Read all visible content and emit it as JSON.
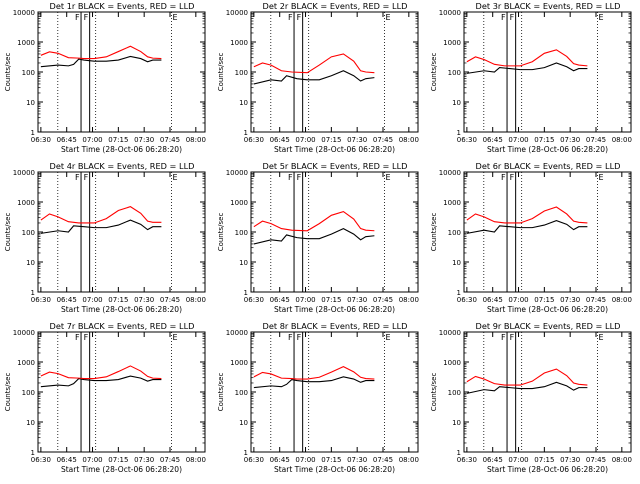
{
  "chart_data": [
    {
      "type": "line",
      "title": "Det 1r BLACK = Events, RED = LLD",
      "xlabel": "Start Time (28-Oct-06 06:28:20)",
      "ylabel": "Counts/sec",
      "xticks": [
        "06:30",
        "06:45",
        "07:00",
        "07:15",
        "07:30",
        "07:45",
        "08:00"
      ],
      "yticks": [
        "1",
        "10",
        "100",
        "1000",
        "10000"
      ],
      "markers": [
        "F",
        "F",
        "E"
      ],
      "scale": "log",
      "series": [
        {
          "name": "BLACK",
          "color": "#000000",
          "x": [
            0,
            10,
            16,
            19,
            22,
            25,
            31,
            38,
            45,
            52,
            58,
            62,
            65,
            70
          ],
          "y": [
            150,
            170,
            160,
            180,
            270,
            250,
            230,
            230,
            250,
            330,
            280,
            220,
            250,
            250
          ]
        },
        {
          "name": "RED",
          "color": "#ff0000",
          "x": [
            0,
            5,
            10,
            16,
            22,
            25,
            31,
            38,
            45,
            52,
            58,
            62,
            65,
            70
          ],
          "y": [
            360,
            470,
            420,
            300,
            290,
            280,
            280,
            320,
            480,
            720,
            480,
            320,
            290,
            280
          ]
        }
      ]
    },
    {
      "type": "line",
      "title": "Det 2r BLACK = Events, RED = LLD",
      "xlabel": "Start Time (28-Oct-06 06:28:20)",
      "ylabel": "Counts/sec",
      "xticks": [
        "06:30",
        "06:45",
        "07:00",
        "07:15",
        "07:30",
        "07:45",
        "08:00"
      ],
      "yticks": [
        "1",
        "10",
        "100",
        "1000",
        "10000"
      ],
      "markers": [
        "F",
        "F",
        "E"
      ],
      "scale": "log",
      "series": [
        {
          "name": "BLACK",
          "color": "#000000",
          "x": [
            0,
            10,
            16,
            19,
            25,
            31,
            38,
            45,
            52,
            58,
            62,
            65,
            70
          ],
          "y": [
            40,
            55,
            50,
            75,
            60,
            55,
            55,
            75,
            110,
            75,
            50,
            60,
            65
          ]
        },
        {
          "name": "RED",
          "color": "#ff0000",
          "x": [
            0,
            5,
            10,
            16,
            22,
            31,
            38,
            45,
            52,
            58,
            62,
            65,
            70
          ],
          "y": [
            150,
            200,
            170,
            110,
            100,
            95,
            170,
            320,
            400,
            230,
            110,
            100,
            95
          ]
        }
      ]
    },
    {
      "type": "line",
      "title": "Det 3r BLACK = Events, RED = LLD",
      "xlabel": "Start Time (28-Oct-06 06:28:20)",
      "ylabel": "Counts/sec",
      "xticks": [
        "06:30",
        "06:45",
        "07:00",
        "07:15",
        "07:30",
        "07:45",
        "08:00"
      ],
      "yticks": [
        "1",
        "10",
        "100",
        "1000",
        "10000"
      ],
      "markers": [
        "F",
        "F",
        "E"
      ],
      "scale": "log",
      "series": [
        {
          "name": "BLACK",
          "color": "#000000",
          "x": [
            0,
            10,
            16,
            19,
            25,
            31,
            38,
            45,
            52,
            58,
            62,
            65,
            70
          ],
          "y": [
            90,
            110,
            100,
            140,
            130,
            120,
            120,
            140,
            200,
            150,
            110,
            130,
            130
          ]
        },
        {
          "name": "RED",
          "color": "#ff0000",
          "x": [
            0,
            5,
            10,
            16,
            22,
            31,
            38,
            45,
            52,
            58,
            62,
            65,
            70
          ],
          "y": [
            220,
            320,
            260,
            180,
            160,
            160,
            220,
            420,
            550,
            330,
            190,
            170,
            160
          ]
        }
      ]
    },
    {
      "type": "line",
      "title": "Det 4r BLACK = Events, RED = LLD",
      "xlabel": "Start Time (28-Oct-06 06:28:20)",
      "ylabel": "Counts/sec",
      "xticks": [
        "06:30",
        "06:45",
        "07:00",
        "07:15",
        "07:30",
        "07:45",
        "08:00"
      ],
      "yticks": [
        "1",
        "10",
        "100",
        "1000",
        "10000"
      ],
      "markers": [
        "F",
        "F",
        "E"
      ],
      "scale": "log",
      "series": [
        {
          "name": "BLACK",
          "color": "#000000",
          "x": [
            0,
            10,
            16,
            19,
            25,
            31,
            38,
            45,
            52,
            58,
            62,
            65,
            70
          ],
          "y": [
            90,
            110,
            100,
            160,
            150,
            140,
            140,
            170,
            250,
            180,
            120,
            150,
            150
          ]
        },
        {
          "name": "RED",
          "color": "#ff0000",
          "x": [
            0,
            5,
            10,
            16,
            22,
            31,
            38,
            45,
            52,
            58,
            62,
            65,
            70
          ],
          "y": [
            250,
            400,
            320,
            220,
            200,
            200,
            280,
            520,
            700,
            420,
            230,
            210,
            210
          ]
        }
      ]
    },
    {
      "type": "line",
      "title": "Det 5r BLACK = Events, RED = LLD",
      "xlabel": "Start Time (28-Oct-06 06:28:20)",
      "ylabel": "Counts/sec",
      "xticks": [
        "06:30",
        "06:45",
        "07:00",
        "07:15",
        "07:30",
        "07:45",
        "08:00"
      ],
      "yticks": [
        "1",
        "10",
        "100",
        "1000",
        "10000"
      ],
      "markers": [
        "F",
        "F",
        "E"
      ],
      "scale": "log",
      "series": [
        {
          "name": "BLACK",
          "color": "#000000",
          "x": [
            0,
            10,
            16,
            19,
            25,
            31,
            38,
            45,
            52,
            58,
            62,
            65,
            70
          ],
          "y": [
            40,
            55,
            50,
            80,
            65,
            60,
            60,
            85,
            130,
            85,
            55,
            70,
            75
          ]
        },
        {
          "name": "RED",
          "color": "#ff0000",
          "x": [
            0,
            5,
            10,
            16,
            22,
            31,
            38,
            45,
            52,
            58,
            62,
            65,
            70
          ],
          "y": [
            150,
            230,
            190,
            130,
            115,
            110,
            190,
            360,
            480,
            270,
            130,
            115,
            110
          ]
        }
      ]
    },
    {
      "type": "line",
      "title": "Det 6r BLACK = Events, RED = LLD",
      "xlabel": "Start Time (28-Oct-06 06:28:20)",
      "ylabel": "Counts/sec",
      "xticks": [
        "06:30",
        "06:45",
        "07:00",
        "07:15",
        "07:30",
        "07:45",
        "08:00"
      ],
      "yticks": [
        "1",
        "10",
        "100",
        "1000",
        "10000"
      ],
      "markers": [
        "F",
        "F",
        "E"
      ],
      "scale": "log",
      "series": [
        {
          "name": "BLACK",
          "color": "#000000",
          "x": [
            0,
            10,
            16,
            19,
            25,
            31,
            38,
            45,
            52,
            58,
            62,
            65,
            70
          ],
          "y": [
            90,
            115,
            100,
            160,
            150,
            140,
            140,
            170,
            240,
            180,
            120,
            150,
            150
          ]
        },
        {
          "name": "RED",
          "color": "#ff0000",
          "x": [
            0,
            5,
            10,
            16,
            22,
            31,
            38,
            45,
            52,
            58,
            62,
            65,
            70
          ],
          "y": [
            250,
            400,
            320,
            220,
            200,
            200,
            280,
            500,
            680,
            400,
            230,
            210,
            200
          ]
        }
      ]
    },
    {
      "type": "line",
      "title": "Det 7r BLACK = Events, RED = LLD",
      "xlabel": "Start Time (28-Oct-06 06:28:20)",
      "ylabel": "Counts/sec",
      "xticks": [
        "06:30",
        "06:45",
        "07:00",
        "07:15",
        "07:30",
        "07:45",
        "08:00"
      ],
      "yticks": [
        "1",
        "10",
        "100",
        "1000",
        "10000"
      ],
      "markers": [
        "F",
        "F",
        "E"
      ],
      "scale": "log",
      "series": [
        {
          "name": "BLACK",
          "color": "#000000",
          "x": [
            0,
            10,
            16,
            19,
            22,
            25,
            31,
            38,
            45,
            52,
            58,
            62,
            65,
            70
          ],
          "y": [
            150,
            170,
            160,
            190,
            280,
            260,
            240,
            240,
            260,
            340,
            290,
            230,
            260,
            260
          ]
        },
        {
          "name": "RED",
          "color": "#ff0000",
          "x": [
            0,
            5,
            10,
            16,
            22,
            25,
            31,
            38,
            45,
            52,
            58,
            62,
            65,
            70
          ],
          "y": [
            340,
            460,
            410,
            300,
            290,
            280,
            280,
            320,
            480,
            740,
            500,
            330,
            290,
            280
          ]
        }
      ]
    },
    {
      "type": "line",
      "title": "Det 8r BLACK = Events, RED = LLD",
      "xlabel": "Start Time (28-Oct-06 06:28:20)",
      "ylabel": "Counts/sec",
      "xticks": [
        "06:30",
        "06:45",
        "07:00",
        "07:15",
        "07:30",
        "07:45",
        "08:00"
      ],
      "yticks": [
        "1",
        "10",
        "100",
        "1000",
        "10000"
      ],
      "markers": [
        "F",
        "F",
        "E"
      ],
      "scale": "log",
      "series": [
        {
          "name": "BLACK",
          "color": "#000000",
          "x": [
            0,
            10,
            16,
            19,
            22,
            25,
            31,
            38,
            45,
            52,
            58,
            62,
            65,
            70
          ],
          "y": [
            140,
            160,
            150,
            180,
            260,
            240,
            220,
            220,
            240,
            320,
            270,
            210,
            240,
            240
          ]
        },
        {
          "name": "RED",
          "color": "#ff0000",
          "x": [
            0,
            5,
            10,
            16,
            22,
            25,
            31,
            38,
            45,
            52,
            58,
            62,
            65,
            70
          ],
          "y": [
            320,
            450,
            400,
            290,
            280,
            270,
            270,
            310,
            460,
            700,
            470,
            310,
            280,
            270
          ]
        }
      ]
    },
    {
      "type": "line",
      "title": "Det 9r BLACK = Events, RED = LLD",
      "xlabel": "Start Time (28-Oct-06 06:28:20)",
      "ylabel": "Counts/sec",
      "xticks": [
        "06:30",
        "06:45",
        "07:00",
        "07:15",
        "07:30",
        "07:45",
        "08:00"
      ],
      "yticks": [
        "1",
        "10",
        "100",
        "1000",
        "10000"
      ],
      "markers": [
        "F",
        "F",
        "E"
      ],
      "scale": "log",
      "series": [
        {
          "name": "BLACK",
          "color": "#000000",
          "x": [
            0,
            10,
            16,
            19,
            25,
            31,
            38,
            45,
            52,
            58,
            62,
            65,
            70
          ],
          "y": [
            90,
            120,
            110,
            150,
            140,
            130,
            130,
            150,
            210,
            160,
            115,
            140,
            140
          ]
        },
        {
          "name": "RED",
          "color": "#ff0000",
          "x": [
            0,
            5,
            10,
            16,
            22,
            31,
            38,
            45,
            52,
            58,
            62,
            65,
            70
          ],
          "y": [
            220,
            330,
            270,
            190,
            170,
            170,
            230,
            430,
            580,
            350,
            200,
            180,
            170
          ]
        }
      ]
    }
  ]
}
